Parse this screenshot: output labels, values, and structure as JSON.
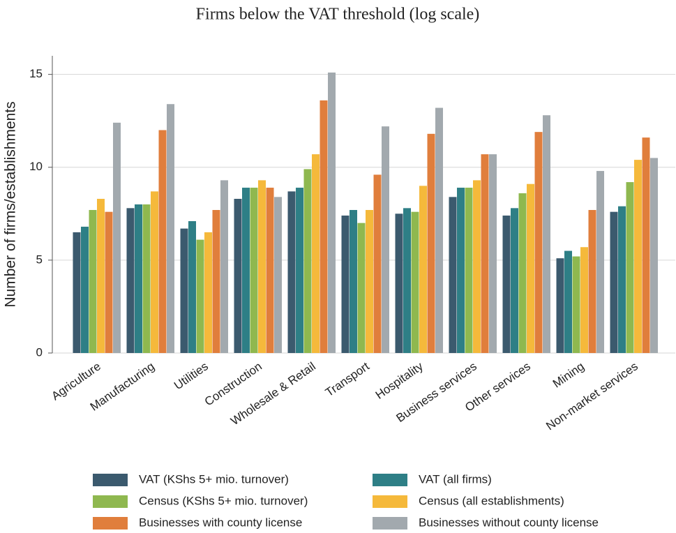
{
  "chart_data": {
    "type": "bar",
    "title": "Firms below the VAT threshold (log scale)",
    "y_label": "Number of firms/establishments",
    "categories": [
      "Agriculture",
      "Manufacturing",
      "Utilities",
      "Construction",
      "Wholesale & Retail",
      "Transport",
      "Hospitality",
      "Business services",
      "Other services",
      "Mining",
      "Non-market services"
    ],
    "series": [
      {
        "name": "VAT (KShs 5+ mio. turnover)",
        "color": "#3b5a6e",
        "values": [
          6.5,
          7.8,
          6.7,
          8.3,
          8.7,
          7.4,
          7.5,
          8.4,
          7.4,
          5.1,
          7.6
        ]
      },
      {
        "name": "VAT (all firms)",
        "color": "#2e7f86",
        "values": [
          6.8,
          8.0,
          7.1,
          8.9,
          8.9,
          7.7,
          7.8,
          8.9,
          7.8,
          5.5,
          7.9
        ]
      },
      {
        "name": "Census (KShs 5+ mio. turnover)",
        "color": "#8fb84f",
        "values": [
          7.7,
          8.0,
          6.1,
          8.9,
          9.9,
          7.0,
          7.6,
          8.9,
          8.6,
          5.2,
          9.2
        ]
      },
      {
        "name": "Census (all establishments)",
        "color": "#f5b93b",
        "values": [
          8.3,
          8.7,
          6.5,
          9.3,
          10.7,
          7.7,
          9.0,
          9.3,
          9.1,
          5.7,
          10.4
        ]
      },
      {
        "name": "Businesses with county license",
        "color": "#e07e3c",
        "values": [
          7.6,
          12.0,
          7.7,
          8.9,
          13.6,
          9.6,
          11.8,
          10.7,
          11.9,
          7.7,
          11.6
        ]
      },
      {
        "name": "Businesses without county license",
        "color": "#a2a9ae",
        "values": [
          12.4,
          13.4,
          9.3,
          8.4,
          15.1,
          12.2,
          13.2,
          10.7,
          12.8,
          9.8,
          10.5
        ]
      }
    ],
    "ylim": [
      0,
      16
    ],
    "yticks": [
      0,
      5,
      10,
      15
    ],
    "grid": true
  }
}
